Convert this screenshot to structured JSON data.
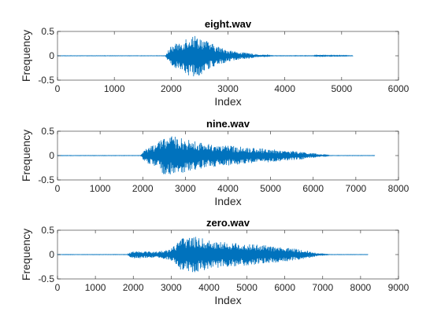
{
  "chart_data": [
    {
      "type": "line",
      "title": "eight.wav",
      "xlabel": "Index",
      "ylabel": "Frequency",
      "xlim": [
        0,
        6000
      ],
      "ylim": [
        -0.5,
        0.5
      ],
      "xticks": [
        "0",
        "1000",
        "2000",
        "3000",
        "4000",
        "5000",
        "6000"
      ],
      "yticks": [
        "0.5",
        "0",
        "-0.5"
      ],
      "series": [
        {
          "color": "#0072BD",
          "signal_end": 5200,
          "envelope": [
            [
              0,
              0.003
            ],
            [
              1900,
              0.003
            ],
            [
              1950,
              0.12
            ],
            [
              2000,
              0.2
            ],
            [
              2100,
              0.26
            ],
            [
              2200,
              0.32
            ],
            [
              2300,
              0.42
            ],
            [
              2400,
              0.43
            ],
            [
              2500,
              0.4
            ],
            [
              2600,
              0.33
            ],
            [
              2700,
              0.26
            ],
            [
              2800,
              0.21
            ],
            [
              2900,
              0.16
            ],
            [
              3000,
              0.13
            ],
            [
              3100,
              0.1
            ],
            [
              3200,
              0.08
            ],
            [
              3400,
              0.05
            ],
            [
              3600,
              0.02
            ],
            [
              3800,
              0.004
            ],
            [
              4500,
              0.005
            ],
            [
              4600,
              0.02
            ],
            [
              4700,
              0.01
            ],
            [
              5000,
              0.008
            ],
            [
              5200,
              0.005
            ]
          ]
        }
      ]
    },
    {
      "type": "line",
      "title": "nine.wav",
      "xlabel": "Index",
      "ylabel": "Frequency",
      "xlim": [
        0,
        8000
      ],
      "ylim": [
        -0.5,
        0.5
      ],
      "xticks": [
        "0",
        "1000",
        "2000",
        "3000",
        "4000",
        "5000",
        "6000",
        "7000",
        "8000"
      ],
      "yticks": [
        "0.5",
        "0",
        "-0.5"
      ],
      "series": [
        {
          "color": "#0072BD",
          "signal_end": 7450,
          "envelope": [
            [
              0,
              0.003
            ],
            [
              1950,
              0.003
            ],
            [
              2000,
              0.08
            ],
            [
              2100,
              0.16
            ],
            [
              2200,
              0.2
            ],
            [
              2300,
              0.24
            ],
            [
              2400,
              0.3
            ],
            [
              2500,
              0.4
            ],
            [
              2700,
              0.4
            ],
            [
              2900,
              0.36
            ],
            [
              3100,
              0.32
            ],
            [
              3300,
              0.28
            ],
            [
              3500,
              0.25
            ],
            [
              3800,
              0.22
            ],
            [
              4100,
              0.2
            ],
            [
              4500,
              0.17
            ],
            [
              4900,
              0.14
            ],
            [
              5300,
              0.11
            ],
            [
              5700,
              0.08
            ],
            [
              6000,
              0.05
            ],
            [
              6200,
              0.02
            ],
            [
              6400,
              0.003
            ],
            [
              7450,
              0.003
            ]
          ]
        }
      ]
    },
    {
      "type": "line",
      "title": "zero.wav",
      "xlabel": "Index",
      "ylabel": "Frequency",
      "xlim": [
        0,
        9000
      ],
      "ylim": [
        -0.5,
        0.5
      ],
      "xticks": [
        "0",
        "1000",
        "2000",
        "3000",
        "4000",
        "5000",
        "6000",
        "7000",
        "8000",
        "9000"
      ],
      "yticks": [
        "0.5",
        "0",
        "-0.5"
      ],
      "series": [
        {
          "color": "#0072BD",
          "signal_end": 8200,
          "envelope": [
            [
              0,
              0.003
            ],
            [
              1850,
              0.003
            ],
            [
              1900,
              0.05
            ],
            [
              2000,
              0.08
            ],
            [
              2300,
              0.07
            ],
            [
              2600,
              0.06
            ],
            [
              2900,
              0.1
            ],
            [
              3100,
              0.2
            ],
            [
              3300,
              0.35
            ],
            [
              3500,
              0.38
            ],
            [
              3700,
              0.36
            ],
            [
              4000,
              0.3
            ],
            [
              4300,
              0.27
            ],
            [
              4700,
              0.24
            ],
            [
              5100,
              0.22
            ],
            [
              5500,
              0.19
            ],
            [
              5900,
              0.15
            ],
            [
              6300,
              0.12
            ],
            [
              6600,
              0.08
            ],
            [
              6800,
              0.04
            ],
            [
              7000,
              0.01
            ],
            [
              7200,
              0.003
            ],
            [
              8200,
              0.003
            ]
          ]
        }
      ]
    }
  ]
}
